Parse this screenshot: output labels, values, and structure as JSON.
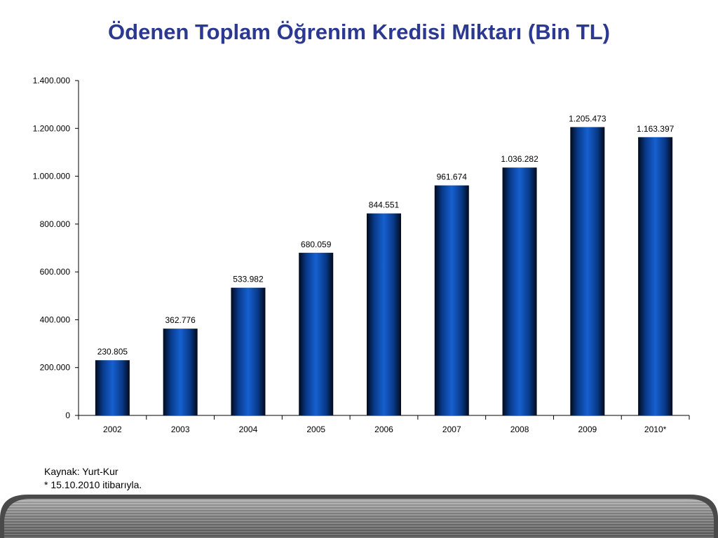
{
  "chart_data": {
    "type": "bar",
    "title": "Ödenen Toplam Öğrenim Kredisi Miktarı (Bin TL)",
    "categories": [
      "2002",
      "2003",
      "2004",
      "2005",
      "2006",
      "2007",
      "2008",
      "2009",
      "2010*"
    ],
    "values": [
      230805,
      362776,
      533982,
      680059,
      844551,
      961674,
      1036282,
      1205473,
      1163397
    ],
    "value_labels": [
      "230.805",
      "362.776",
      "533.982",
      "680.059",
      "844.551",
      "961.674",
      "1.036.282",
      "1.205.473",
      "1.163.397"
    ],
    "yticks": [
      0,
      200000,
      400000,
      600000,
      800000,
      1000000,
      1200000,
      1400000
    ],
    "ytick_labels": [
      "0",
      "200.000",
      "400.000",
      "600.000",
      "800.000",
      "1.000.000",
      "1.200.000",
      "1.400.000"
    ],
    "ylim": [
      0,
      1400000
    ],
    "grid": false,
    "legend": "none",
    "bar_color": "#0a4aa8",
    "title_color": "#2b3990"
  },
  "notes": {
    "source": "Kaynak: Yurt-Kur",
    "footnote": "* 15.10.2010 itibarıyla."
  }
}
